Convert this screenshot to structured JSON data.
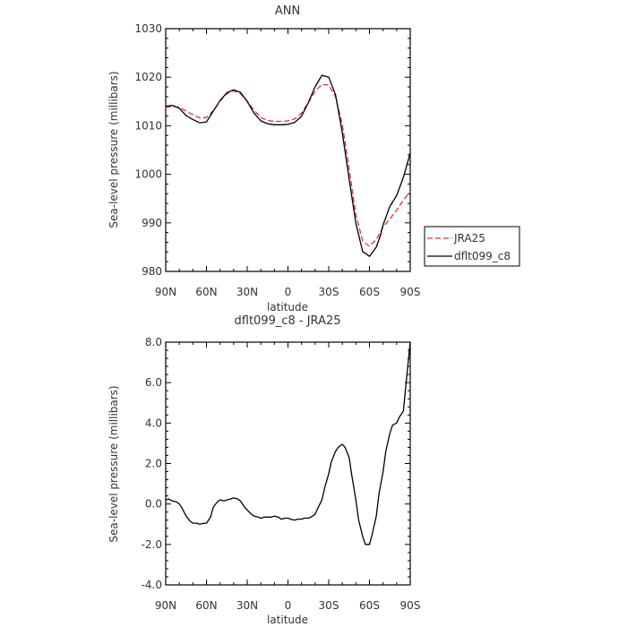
{
  "chart_data": [
    {
      "type": "line",
      "title": "ANN",
      "xlabel": "latitude",
      "ylabel": "Sea-level pressure (millibars)",
      "xlim": [
        90,
        -90
      ],
      "ylim": [
        980,
        1030
      ],
      "x_ticks": [
        90,
        60,
        30,
        0,
        -30,
        -60,
        -90
      ],
      "x_tick_labels": [
        "90N",
        "60N",
        "30N",
        "0",
        "30S",
        "60S",
        "90S"
      ],
      "y_ticks": [
        980,
        990,
        1000,
        1010,
        1020,
        1030
      ],
      "y_tick_labels": [
        "980",
        "990",
        "1000",
        "1010",
        "1020",
        "1030"
      ],
      "grid": false,
      "legend_position": "right",
      "series": [
        {
          "name": "JRA25",
          "color": "#e03030",
          "dash": true,
          "x": [
            90,
            85,
            80,
            75,
            70,
            65,
            60,
            55,
            50,
            45,
            40,
            35,
            30,
            25,
            20,
            15,
            10,
            5,
            0,
            -5,
            -10,
            -15,
            -20,
            -25,
            -30,
            -35,
            -40,
            -45,
            -50,
            -55,
            -60,
            -65,
            -68,
            -70,
            -75,
            -80,
            -85,
            -90
          ],
          "y": [
            1013.8,
            1014.0,
            1013.8,
            1013.0,
            1012.3,
            1011.6,
            1011.7,
            1013.1,
            1015.1,
            1016.6,
            1017.2,
            1016.6,
            1015.1,
            1013.2,
            1011.7,
            1011.1,
            1010.9,
            1010.9,
            1011.0,
            1011.4,
            1012.6,
            1014.8,
            1017.1,
            1018.5,
            1018.4,
            1016.0,
            1010.2,
            1001.1,
            991.7,
            986.2,
            985.2,
            986.6,
            988.0,
            989.2,
            990.8,
            992.6,
            994.7,
            996.4
          ]
        },
        {
          "name": "dflt099_c8",
          "color": "#000000",
          "dash": false,
          "x": [
            90,
            85,
            80,
            75,
            70,
            65,
            60,
            55,
            50,
            45,
            40,
            35,
            30,
            25,
            20,
            15,
            10,
            5,
            0,
            -5,
            -10,
            -15,
            -20,
            -25,
            -30,
            -35,
            -40,
            -45,
            -50,
            -55,
            -60,
            -65,
            -68,
            -70,
            -75,
            -80,
            -85,
            -90
          ],
          "y": [
            1014.0,
            1014.2,
            1013.6,
            1012.1,
            1011.3,
            1010.6,
            1010.8,
            1013.0,
            1015.2,
            1016.8,
            1017.4,
            1016.9,
            1015.0,
            1012.6,
            1011.0,
            1010.4,
            1010.2,
            1010.2,
            1010.3,
            1010.7,
            1012.0,
            1014.8,
            1018.0,
            1020.4,
            1020.0,
            1016.4,
            1008.5,
            999.0,
            989.9,
            984.1,
            983.1,
            985.0,
            987.3,
            989.6,
            993.4,
            995.6,
            999.4,
            1004.4
          ]
        }
      ]
    },
    {
      "type": "line",
      "title": "dflt099_c8 - JRA25",
      "xlabel": "latitude",
      "ylabel": "Sea-level pressure (millibars)",
      "xlim": [
        90,
        -90
      ],
      "ylim": [
        -4.0,
        8.0
      ],
      "x_ticks": [
        90,
        60,
        30,
        0,
        -30,
        -60,
        -90
      ],
      "x_tick_labels": [
        "90N",
        "60N",
        "30N",
        "0",
        "30S",
        "60S",
        "90S"
      ],
      "y_ticks": [
        -4,
        -2,
        0,
        2,
        4,
        6,
        8
      ],
      "y_tick_labels": [
        "-4.0",
        "-2.0",
        "0.0",
        "2.0",
        "4.0",
        "6.0",
        "8.0"
      ],
      "grid": false,
      "series": [
        {
          "color": "#000000",
          "dash": false,
          "x": [
            90,
            88,
            85,
            82,
            80,
            78,
            75,
            72,
            70,
            67,
            65,
            62,
            60,
            57,
            55,
            52,
            50,
            47,
            45,
            42,
            40,
            37,
            35,
            32,
            30,
            27,
            25,
            22,
            20,
            17,
            15,
            12,
            10,
            7,
            5,
            2,
            0,
            -2,
            -5,
            -7,
            -10,
            -12,
            -15,
            -17,
            -20,
            -22,
            -25,
            -27,
            -30,
            -32,
            -35,
            -37,
            -40,
            -42,
            -45,
            -47,
            -50,
            -52,
            -55,
            -57,
            -60,
            -62,
            -65,
            -67,
            -70,
            -72,
            -75,
            -77,
            -80,
            -82,
            -85,
            -87,
            -90
          ],
          "y": [
            0.2,
            0.25,
            0.15,
            0.1,
            0.0,
            -0.2,
            -0.6,
            -0.85,
            -0.95,
            -0.95,
            -1.0,
            -0.95,
            -0.95,
            -0.65,
            -0.15,
            0.1,
            0.2,
            0.15,
            0.2,
            0.25,
            0.3,
            0.25,
            0.15,
            -0.15,
            -0.3,
            -0.5,
            -0.6,
            -0.65,
            -0.7,
            -0.65,
            -0.65,
            -0.65,
            -0.6,
            -0.65,
            -0.75,
            -0.7,
            -0.7,
            -0.75,
            -0.8,
            -0.75,
            -0.75,
            -0.7,
            -0.7,
            -0.65,
            -0.5,
            -0.2,
            0.2,
            0.8,
            1.5,
            2.1,
            2.6,
            2.8,
            2.95,
            2.8,
            2.3,
            1.4,
            0.2,
            -0.8,
            -1.6,
            -2.0,
            -2.0,
            -1.5,
            -0.6,
            0.5,
            1.6,
            2.6,
            3.5,
            3.9,
            4.0,
            4.3,
            4.6,
            6.0,
            8.0
          ]
        }
      ]
    }
  ]
}
